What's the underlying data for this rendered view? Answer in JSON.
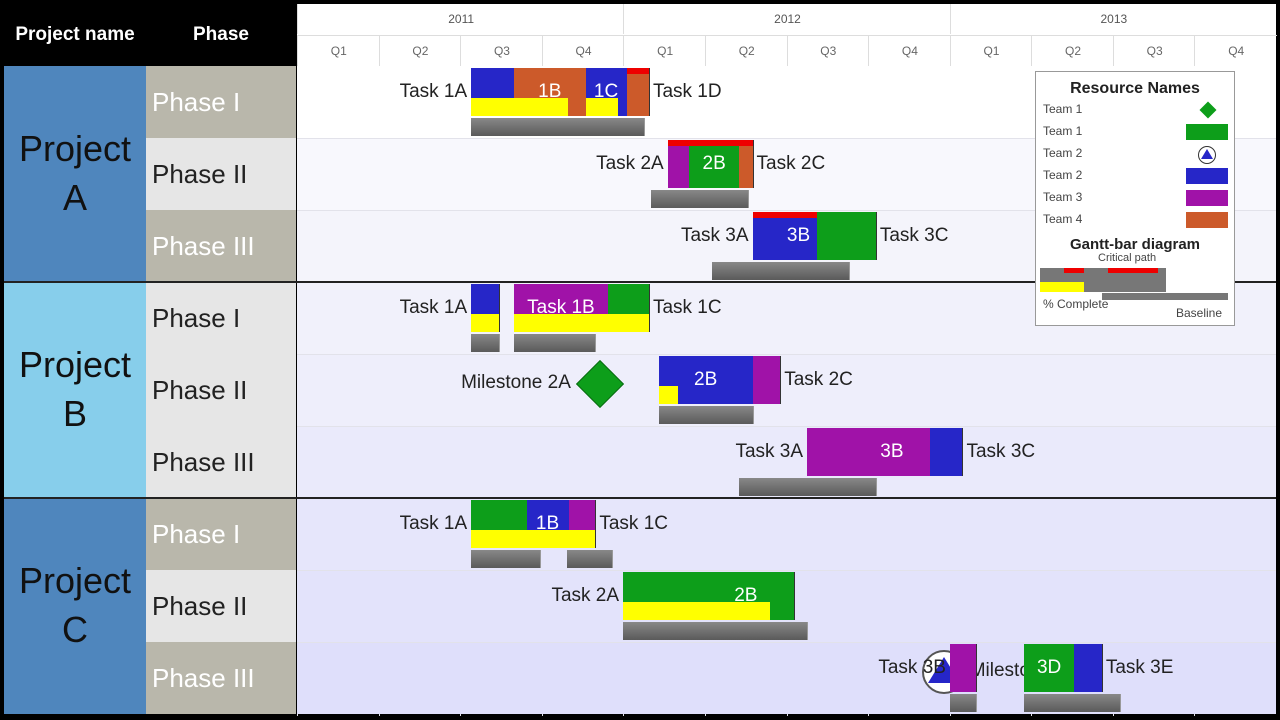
{
  "header": {
    "project_col": "Project name",
    "phase_col": "Phase"
  },
  "timeline": {
    "years": [
      "2011",
      "2012",
      "2013"
    ],
    "quarters": [
      "Q1",
      "Q2",
      "Q3",
      "Q4",
      "Q1",
      "Q2",
      "Q3",
      "Q4",
      "Q1",
      "Q2",
      "Q3",
      "Q4"
    ]
  },
  "projects": [
    {
      "name": "Project A",
      "phases": [
        "Phase I",
        "Phase II",
        "Phase III"
      ]
    },
    {
      "name": "Project B",
      "phases": [
        "Phase I",
        "Phase II",
        "Phase III"
      ]
    },
    {
      "name": "Project C",
      "phases": [
        "Phase I",
        "Phase II",
        "Phase III"
      ]
    }
  ],
  "colors": {
    "team1": "#0d9e1a",
    "team2": "#2626c8",
    "team3": "#a012a8",
    "team4": "#cc5a2a",
    "complete": "#ffff00",
    "critical": "#ee0000",
    "baseline": "#777777"
  },
  "chart_data": {
    "type": "gantt",
    "axis_start": "2011-01-01",
    "axis_end": "2013-12-31",
    "tasks": [
      {
        "row": 0,
        "label": "Task 1A",
        "start": "2011-07-15",
        "end": "2011-09-01",
        "team": "team2",
        "complete": 1.0,
        "critical": false,
        "baseline": [
          "2011-07-15",
          "2011-09-01"
        ]
      },
      {
        "row": 0,
        "label": "1B",
        "start": "2011-09-01",
        "end": "2011-11-20",
        "team": "team4",
        "complete": 0.75,
        "critical": false,
        "baseline": [
          "2011-09-01",
          "2011-12-15"
        ]
      },
      {
        "row": 0,
        "label": "1C",
        "start": "2011-11-20",
        "end": "2012-01-05",
        "team": "team2",
        "complete": 0.8,
        "critical": false,
        "baseline": [
          "2011-12-15",
          "2012-01-25"
        ]
      },
      {
        "row": 0,
        "label": "Task 1D",
        "start": "2012-01-05",
        "end": "2012-01-30",
        "team": "team4",
        "complete": 0.0,
        "critical": true,
        "baseline": null
      },
      {
        "row": 1,
        "label": "Task 2A",
        "start": "2012-02-20",
        "end": "2012-03-15",
        "team": "team3",
        "complete": 0.0,
        "critical": true,
        "baseline": [
          "2012-02-01",
          "2012-03-15"
        ]
      },
      {
        "row": 1,
        "label": "2B",
        "start": "2012-03-15",
        "end": "2012-05-10",
        "team": "team1",
        "complete": 0.0,
        "critical": true,
        "baseline": [
          "2012-03-15",
          "2012-05-20"
        ]
      },
      {
        "row": 1,
        "label": "Task 2C",
        "start": "2012-05-10",
        "end": "2012-05-25",
        "team": "team4",
        "complete": 0.0,
        "critical": true,
        "baseline": null
      },
      {
        "row": 2,
        "label": "Task 3A",
        "start": "2012-05-25",
        "end": "2012-06-25",
        "team": "team2",
        "complete": 0.0,
        "critical": true,
        "baseline": [
          "2012-04-10",
          "2012-05-20"
        ]
      },
      {
        "row": 2,
        "label": "3B",
        "start": "2012-06-25",
        "end": "2012-08-05",
        "team": "team2",
        "complete": 0.0,
        "critical": true,
        "baseline": [
          "2012-05-20",
          "2012-07-05"
        ]
      },
      {
        "row": 2,
        "label": "Task 3C",
        "start": "2012-08-05",
        "end": "2012-10-10",
        "team": "team1",
        "complete": 0.0,
        "critical": false,
        "baseline": [
          "2012-07-05",
          "2012-09-10"
        ]
      },
      {
        "row": 3,
        "label": "Task 1A",
        "start": "2011-07-15",
        "end": "2011-08-15",
        "team": "team2",
        "complete": 1.0,
        "critical": false,
        "baseline": [
          "2011-07-15",
          "2011-08-15"
        ]
      },
      {
        "row": 3,
        "label": "Task 1B",
        "start": "2011-09-01",
        "end": "2011-12-15",
        "team": "team3",
        "complete": 1.0,
        "critical": false,
        "baseline": [
          "2011-09-01",
          "2011-12-01"
        ]
      },
      {
        "row": 3,
        "label": "Task 1C",
        "start": "2011-12-15",
        "end": "2012-01-30",
        "team": "team1",
        "complete": 1.0,
        "critical": false,
        "baseline": null
      },
      {
        "row": 4,
        "label": "Milestone 2A",
        "milestone": true,
        "date": "2011-12-05",
        "team": "team1"
      },
      {
        "row": 4,
        "label": "2B",
        "start": "2012-02-10",
        "end": "2012-05-25",
        "team": "team2",
        "complete": 0.2,
        "critical": false,
        "baseline": [
          "2012-02-10",
          "2012-05-25"
        ]
      },
      {
        "row": 4,
        "label": "Task 2C",
        "start": "2012-05-25",
        "end": "2012-06-25",
        "team": "team3",
        "complete": 0.0,
        "critical": false,
        "baseline": null
      },
      {
        "row": 5,
        "label": "Task 3A",
        "start": "2012-07-25",
        "end": "2012-09-15",
        "team": "team3",
        "complete": 0.0,
        "critical": false,
        "baseline": [
          "2012-05-10",
          "2012-10-10"
        ]
      },
      {
        "row": 5,
        "label": "3B",
        "start": "2012-09-15",
        "end": "2012-12-10",
        "team": "team3",
        "complete": 0.0,
        "critical": false,
        "baseline": null
      },
      {
        "row": 5,
        "label": "Task 3C",
        "start": "2012-12-10",
        "end": "2013-01-15",
        "team": "team2",
        "complete": 0.0,
        "critical": false,
        "baseline": null
      },
      {
        "row": 6,
        "label": "Task 1A",
        "start": "2011-07-15",
        "end": "2011-09-15",
        "team": "team1",
        "complete": 1.0,
        "critical": false,
        "baseline": [
          "2011-07-15",
          "2011-09-01"
        ]
      },
      {
        "row": 6,
        "label": "1B",
        "start": "2011-09-15",
        "end": "2011-11-01",
        "team": "team2",
        "complete": 1.0,
        "critical": false,
        "baseline": [
          "2011-09-01",
          "2011-09-30"
        ]
      },
      {
        "row": 6,
        "label": "Task 1C",
        "start": "2011-11-01",
        "end": "2011-12-01",
        "team": "team3",
        "complete": 1.0,
        "critical": false,
        "baseline": [
          "2011-10-30",
          "2011-12-20"
        ]
      },
      {
        "row": 7,
        "label": "Task 2A",
        "start": "2012-01-01",
        "end": "2012-03-25",
        "team": "team1",
        "complete": 1.0,
        "critical": false,
        "baseline": [
          "2012-01-01",
          "2012-07-25"
        ]
      },
      {
        "row": 7,
        "label": "2B",
        "start": "2012-03-25",
        "end": "2012-07-10",
        "team": "team1",
        "complete": 0.75,
        "critical": false,
        "baseline": null
      },
      {
        "row": 8,
        "label": "Milestone 2C",
        "milestone": true,
        "date": "2012-12-25",
        "team": "team2"
      },
      {
        "row": 8,
        "label": "Task 3B",
        "start": "2013-01-01",
        "end": "2013-01-30",
        "team": "team3",
        "complete": 0.0,
        "critical": false,
        "baseline": [
          "2013-01-01",
          "2013-01-30"
        ]
      },
      {
        "row": 8,
        "label": "3D",
        "start": "2013-03-25",
        "end": "2013-05-20",
        "team": "team1",
        "complete": 0.0,
        "critical": false,
        "baseline": [
          "2013-03-25",
          "2013-05-20"
        ]
      },
      {
        "row": 8,
        "label": "Task 3E",
        "start": "2013-05-20",
        "end": "2013-06-20",
        "team": "team2",
        "complete": 0.0,
        "critical": false,
        "baseline": [
          "2013-05-20",
          "2013-07-10"
        ]
      }
    ]
  },
  "legend": {
    "title": "Resource Names",
    "items": [
      {
        "label": "Team 1",
        "kind": "diamond",
        "team": "team1"
      },
      {
        "label": "Team 1",
        "kind": "bar",
        "team": "team1"
      },
      {
        "label": "Team 2",
        "kind": "triangle",
        "team": "team2"
      },
      {
        "label": "Team 2",
        "kind": "bar",
        "team": "team2"
      },
      {
        "label": "Team 3",
        "kind": "bar",
        "team": "team3"
      },
      {
        "label": "Team 4",
        "kind": "bar",
        "team": "team4"
      }
    ],
    "gantt_title": "Gantt-bar diagram",
    "critical_label": "Critical path",
    "complete_label": "% Complete",
    "baseline_label": "Baseline"
  }
}
